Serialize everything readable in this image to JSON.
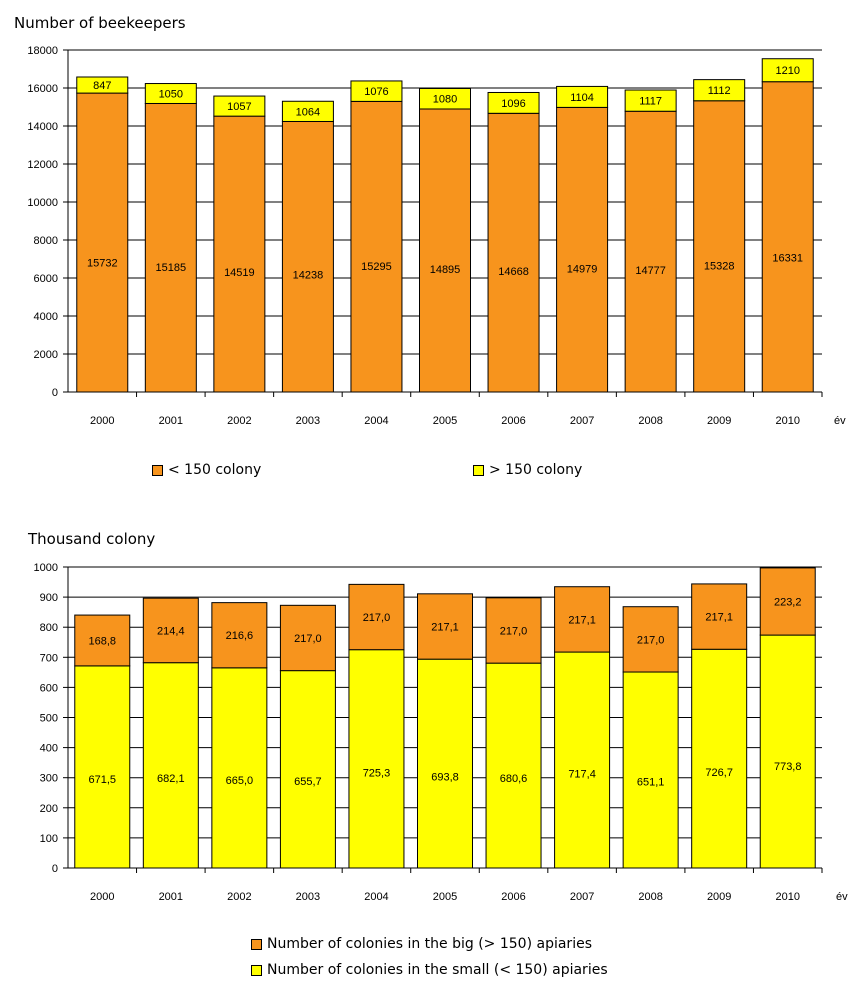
{
  "colors": {
    "orange": "#F7941D",
    "yellow": "#FFFF00",
    "grid": "#000000"
  },
  "chart_data": [
    {
      "type": "bar",
      "stacked": true,
      "title": "Number of beekeepers",
      "x_unit": "év",
      "categories": [
        "2000",
        "2001",
        "2002",
        "2003",
        "2004",
        "2005",
        "2006",
        "2007",
        "2008",
        "2009",
        "2010"
      ],
      "ylim": [
        0,
        18000
      ],
      "yticks": [
        "0",
        "2000",
        "4000",
        "6000",
        "8000",
        "10000",
        "12000",
        "14000",
        "16000",
        "18000"
      ],
      "grid": true,
      "legend_position": "bottom",
      "series": [
        {
          "name": "< 150 colony",
          "color": "#F7941D",
          "values": [
            15732,
            15185,
            14519,
            14238,
            15295,
            14895,
            14668,
            14979,
            14777,
            15328,
            16331
          ],
          "labels": [
            "15732",
            "15185",
            "14519",
            "14238",
            "15295",
            "14895",
            "14668",
            "14979",
            "14777",
            "15328",
            "16331"
          ]
        },
        {
          "name": "> 150 colony",
          "color": "#FFFF00",
          "values": [
            847,
            1050,
            1057,
            1064,
            1076,
            1080,
            1096,
            1104,
            1117,
            1112,
            1210
          ],
          "labels": [
            "847",
            "1050",
            "1057",
            "1064",
            "1076",
            "1080",
            "1096",
            "1104",
            "1117",
            "1112",
            "1210"
          ]
        }
      ]
    },
    {
      "type": "bar",
      "stacked": true,
      "title": "Thousand colony",
      "x_unit": "év",
      "categories": [
        "2000",
        "2001",
        "2002",
        "2003",
        "2004",
        "2005",
        "2006",
        "2007",
        "2008",
        "2009",
        "2010"
      ],
      "ylim": [
        0,
        1000
      ],
      "yticks": [
        "0",
        "100",
        "200",
        "300",
        "400",
        "500",
        "600",
        "700",
        "800",
        "900",
        "1000"
      ],
      "grid": true,
      "legend_position": "bottom",
      "series": [
        {
          "name": "Number of colonies in the small (< 150) apiaries",
          "color": "#FFFF00",
          "values": [
            671.5,
            682.1,
            665.0,
            655.7,
            725.3,
            693.8,
            680.6,
            717.4,
            651.1,
            726.7,
            773.8
          ],
          "labels": [
            "671,5",
            "682,1",
            "665,0",
            "655,7",
            "725,3",
            "693,8",
            "680,6",
            "717,4",
            "651,1",
            "726,7",
            "773,8"
          ]
        },
        {
          "name": "Number of colonies in the big (> 150) apiaries",
          "color": "#F7941D",
          "values": [
            168.8,
            214.4,
            216.6,
            217.0,
            217.0,
            217.1,
            217.0,
            217.1,
            217.0,
            217.1,
            223.2
          ],
          "labels": [
            "168,8",
            "214,4",
            "216,6",
            "217,0",
            "217,0",
            "217,1",
            "217,0",
            "217,1",
            "217,0",
            "217,1",
            "223,2"
          ]
        }
      ]
    }
  ]
}
